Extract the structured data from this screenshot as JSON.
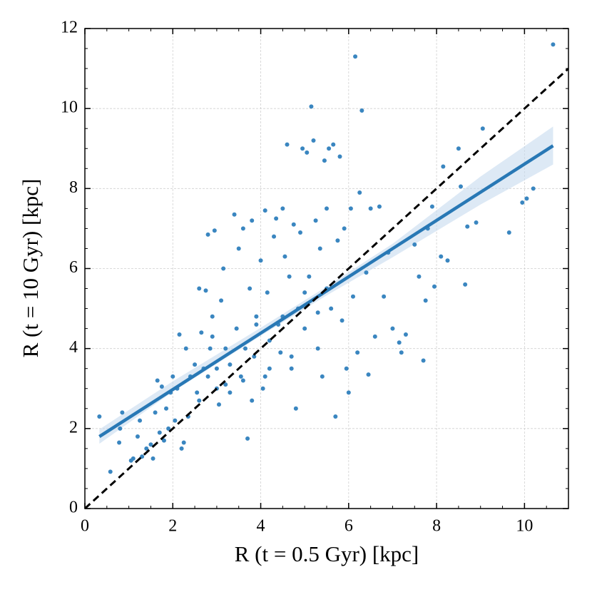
{
  "chart_data": {
    "type": "scatter",
    "xlabel": "R (t = 0.5 Gyr) [kpc]",
    "ylabel": "R (t = 10 Gyr) [kpc]",
    "xlim": [
      0,
      11
    ],
    "ylim": [
      0,
      12
    ],
    "xticks": [
      0,
      2,
      4,
      6,
      8,
      10
    ],
    "yticks": [
      0,
      2,
      4,
      6,
      8,
      10,
      12
    ],
    "minor_tick_step": [
      0.5,
      0.5
    ],
    "grid": true,
    "series": [
      {
        "style": "band",
        "color": "#c6dbef",
        "x": [
          0.33,
          2.0,
          4.0,
          5.5,
          7.0,
          9.0,
          10.65
        ],
        "lower": [
          1.62,
          2.92,
          4.32,
          5.33,
          6.28,
          7.6,
          8.6
        ],
        "upper": [
          1.98,
          3.18,
          4.52,
          5.55,
          6.62,
          8.3,
          9.55
        ]
      },
      {
        "style": "points",
        "color": "#3a86c0",
        "x": [
          0.33,
          0.58,
          0.78,
          0.85,
          0.8,
          1.05,
          1.1,
          1.2,
          1.25,
          1.3,
          1.4,
          1.5,
          1.55,
          1.6,
          1.65,
          1.7,
          1.75,
          1.8,
          1.85,
          1.9,
          1.95,
          2.0,
          2.05,
          2.1,
          2.15,
          2.2,
          2.25,
          2.3,
          2.35,
          2.4,
          2.5,
          2.55,
          2.6,
          2.65,
          2.7,
          2.75,
          2.8,
          2.85,
          2.9,
          2.95,
          3.0,
          3.05,
          3.1,
          3.15,
          3.2,
          3.3,
          3.4,
          3.45,
          3.5,
          3.55,
          3.6,
          3.65,
          3.7,
          3.75,
          3.8,
          3.85,
          3.9,
          4.0,
          4.05,
          4.1,
          4.15,
          4.2,
          4.3,
          4.35,
          4.4,
          4.45,
          4.5,
          4.55,
          4.6,
          4.65,
          4.7,
          4.75,
          4.8,
          4.85,
          4.9,
          4.95,
          5.0,
          5.05,
          5.1,
          5.15,
          5.2,
          5.25,
          5.3,
          5.35,
          5.4,
          5.45,
          5.5,
          5.55,
          5.6,
          5.65,
          5.7,
          5.75,
          5.8,
          5.85,
          5.9,
          5.95,
          6.0,
          6.05,
          6.1,
          6.15,
          6.2,
          6.25,
          6.3,
          6.4,
          6.45,
          6.5,
          6.6,
          6.7,
          6.8,
          6.9,
          7.0,
          7.15,
          7.2,
          7.3,
          7.5,
          7.6,
          7.7,
          7.75,
          7.8,
          7.9,
          7.95,
          8.1,
          8.15,
          8.25,
          8.5,
          8.55,
          8.65,
          8.7,
          8.9,
          9.05,
          9.65,
          9.95,
          10.05,
          10.2,
          10.65,
          3.0,
          3.3,
          3.6,
          3.8,
          4.2,
          4.5,
          4.7,
          5.0,
          5.3,
          5.5,
          3.2,
          2.8,
          2.6,
          2.9,
          3.9,
          4.1
        ],
        "values": [
          2.3,
          0.92,
          1.65,
          2.4,
          2.0,
          1.2,
          1.25,
          1.8,
          2.2,
          1.3,
          1.5,
          1.6,
          1.25,
          2.4,
          3.2,
          1.9,
          3.05,
          1.7,
          2.5,
          2.0,
          2.9,
          3.3,
          2.2,
          3.0,
          4.35,
          1.5,
          1.65,
          4.0,
          2.3,
          3.3,
          3.6,
          2.9,
          5.5,
          4.4,
          3.5,
          5.45,
          6.85,
          4.0,
          4.8,
          6.95,
          3.0,
          2.6,
          5.2,
          6.0,
          4.0,
          3.6,
          7.35,
          4.5,
          6.5,
          3.3,
          7.0,
          4.0,
          1.75,
          5.5,
          7.2,
          3.8,
          4.8,
          6.2,
          3.0,
          7.45,
          5.4,
          3.5,
          6.8,
          7.25,
          4.6,
          3.9,
          7.5,
          6.3,
          9.1,
          5.8,
          3.5,
          7.1,
          2.5,
          5.0,
          6.9,
          9.0,
          4.5,
          8.9,
          5.8,
          10.05,
          9.2,
          7.2,
          4.0,
          6.5,
          3.3,
          8.7,
          7.5,
          9.0,
          5.0,
          9.1,
          2.3,
          6.7,
          8.8,
          4.7,
          7.0,
          3.5,
          2.9,
          7.5,
          5.3,
          11.3,
          3.9,
          7.9,
          9.95,
          5.9,
          3.35,
          7.5,
          4.3,
          7.55,
          5.3,
          6.4,
          4.5,
          4.15,
          3.9,
          4.35,
          6.6,
          5.8,
          3.7,
          5.2,
          7.0,
          7.55,
          5.55,
          6.3,
          8.55,
          6.2,
          9.0,
          8.05,
          5.6,
          7.05,
          7.15,
          9.5,
          6.9,
          7.65,
          7.75,
          8.0,
          11.6,
          3.5,
          2.9,
          3.2,
          2.7,
          4.2,
          4.8,
          3.8,
          5.4,
          4.9,
          5.5,
          3.1,
          3.3,
          2.7,
          4.3,
          4.6,
          3.3
        ]
      },
      {
        "style": "line",
        "color": "#2878b5",
        "x": [
          0.33,
          10.65
        ],
        "values": [
          1.8,
          9.07
        ]
      },
      {
        "style": "dashed",
        "color": "#000000",
        "x": [
          0,
          11
        ],
        "values": [
          0,
          11
        ]
      }
    ]
  }
}
